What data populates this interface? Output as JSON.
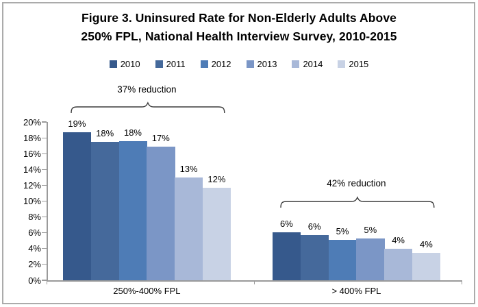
{
  "header": {
    "title_line1": "Figure 3. Uninsured Rate for Non-Elderly Adults Above",
    "title_line2": "250% FPL, National Health Interview Survey, 2010-2015"
  },
  "chart_data": {
    "type": "bar",
    "title": "Figure 3. Uninsured Rate for Non-Elderly Adults Above 250% FPL, National Health Interview Survey, 2010-2015",
    "categories": [
      "250%-400% FPL",
      "> 400% FPL"
    ],
    "series": [
      {
        "name": "2010",
        "color": "#36598C",
        "values": [
          18.7,
          6.1
        ],
        "bar_labels": [
          "19%",
          "6%"
        ]
      },
      {
        "name": "2011",
        "color": "#45699B",
        "values": [
          17.5,
          5.7
        ],
        "bar_labels": [
          "18%",
          "6%"
        ]
      },
      {
        "name": "2012",
        "color": "#4E7CB6",
        "values": [
          17.6,
          5.1
        ],
        "bar_labels": [
          "18%",
          "5%"
        ]
      },
      {
        "name": "2013",
        "color": "#7B96C6",
        "values": [
          16.9,
          5.3
        ],
        "bar_labels": [
          "17%",
          "5%"
        ]
      },
      {
        "name": "2014",
        "color": "#A8B8D8",
        "values": [
          13.0,
          4.0
        ],
        "bar_labels": [
          "13%",
          "4%"
        ]
      },
      {
        "name": "2015",
        "color": "#C8D2E5",
        "values": [
          11.7,
          3.5
        ],
        "bar_labels": [
          "12%",
          "4%"
        ]
      }
    ],
    "annotations": [
      {
        "text": "37% reduction",
        "category_index": 0
      },
      {
        "text": "42% reduction",
        "category_index": 1
      }
    ],
    "yticks": [
      "0%",
      "2%",
      "4%",
      "6%",
      "8%",
      "10%",
      "12%",
      "14%",
      "16%",
      "18%",
      "20%"
    ],
    "ylim": [
      0,
      20
    ],
    "xlabel": "",
    "ylabel": "",
    "grid": false,
    "legend_position": "top",
    "axis_color": "#9a9a9a",
    "annotation_color": "#3a3a3a",
    "text_color": "#000000"
  }
}
